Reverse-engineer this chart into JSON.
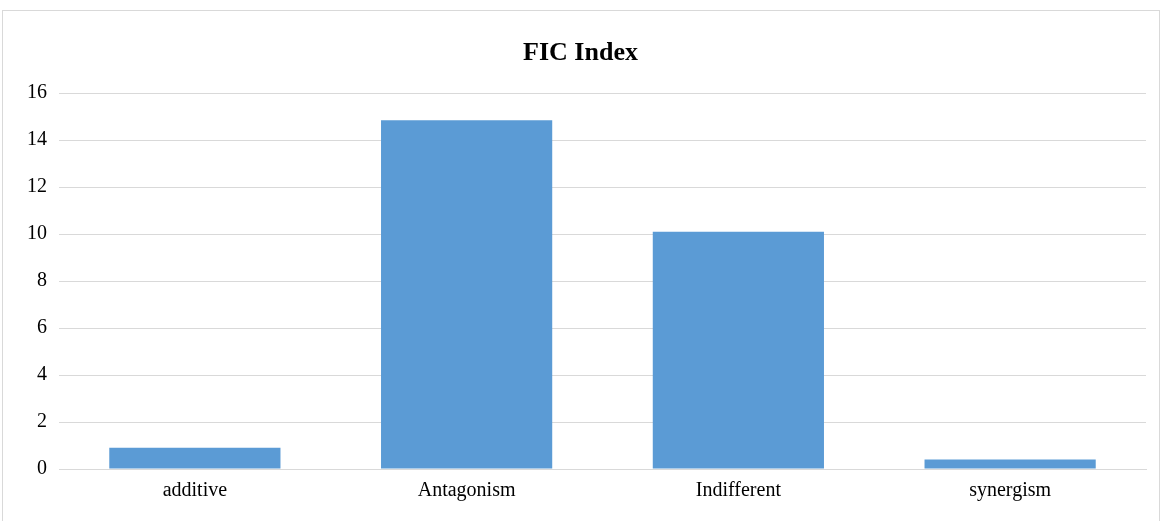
{
  "chart_data": {
    "type": "bar",
    "title": "FIC Index",
    "categories": [
      "additive",
      "Antagonism",
      "Indifferent",
      "synergism"
    ],
    "values": [
      0.9,
      14.85,
      10.1,
      0.4
    ],
    "color": "#5b9bd5",
    "ylim": [
      0,
      16
    ],
    "yticks": [
      0,
      2,
      4,
      6,
      8,
      10,
      12,
      14,
      16
    ],
    "grid": "y"
  }
}
